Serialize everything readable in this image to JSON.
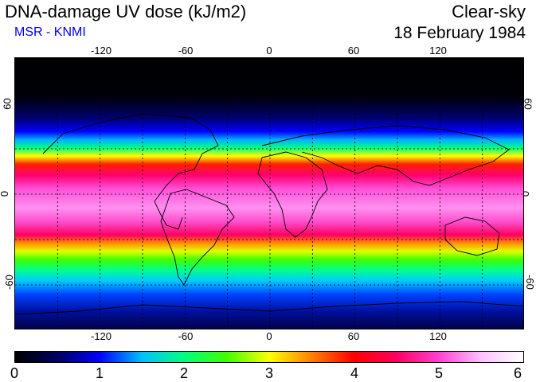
{
  "header": {
    "title": "DNA-damage UV dose (kJ/m2)",
    "subtitle": "MSR - KNMI",
    "sky_condition": "Clear-sky",
    "date": "18 February 1984"
  },
  "map": {
    "longitude_ticks": [
      "-120",
      "-60",
      "0",
      "60",
      "120"
    ],
    "latitude_ticks": [
      "60",
      "0",
      "-60"
    ],
    "gridlines": true,
    "lon_range": [
      -180,
      180
    ],
    "lat_range": [
      -90,
      90
    ]
  },
  "colorbar": {
    "labels": [
      "0",
      "1",
      "2",
      "3",
      "4",
      "5",
      "6"
    ],
    "colors": [
      "#000000",
      "#000060",
      "#0000ff",
      "#00c0ff",
      "#00ff80",
      "#40ff00",
      "#ffff00",
      "#ff8000",
      "#ff0000",
      "#ff0060",
      "#ff40d0",
      "#ffc0ff",
      "#ffffff"
    ]
  }
}
